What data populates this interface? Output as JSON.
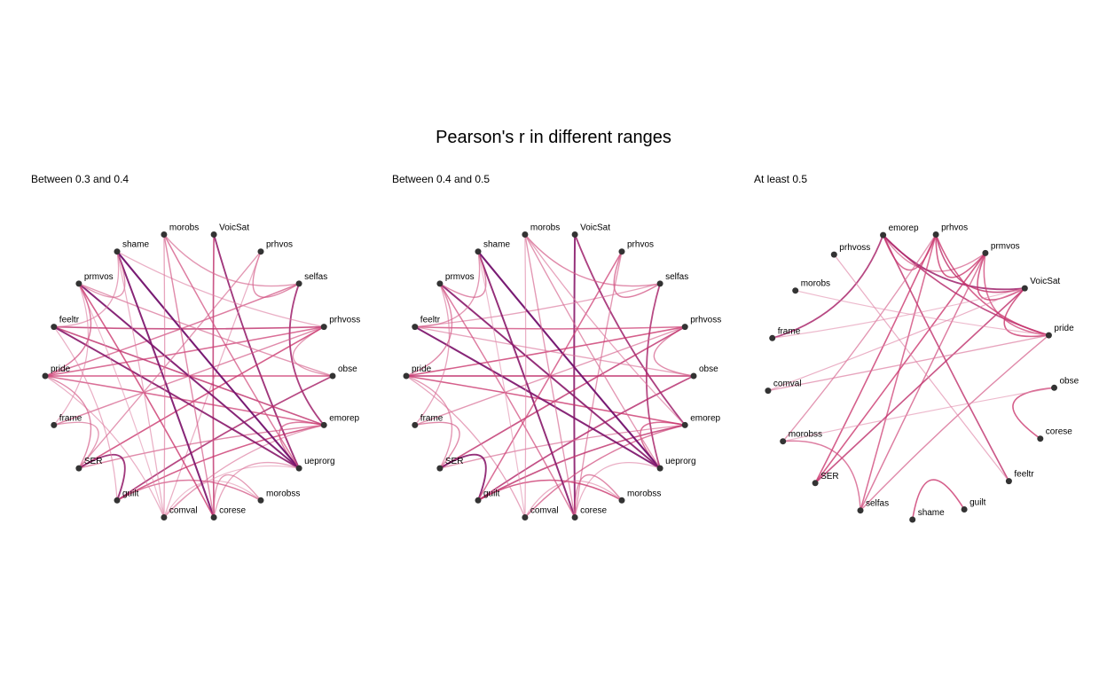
{
  "title": "Pearson's r in different ranges",
  "colors": {
    "node": "#333333",
    "text": "#000000",
    "edge_low": "#ecb8cc",
    "edge_mid": "#c9326a",
    "edge_high": "#5e0a6e"
  },
  "panels": [
    {
      "subtitle": "Between 0.3 and 0.4",
      "nodes": [
        "VoicSat",
        "prhvos",
        "selfas",
        "prhvoss",
        "obse",
        "emorep",
        "ueprorg",
        "morobss",
        "corese",
        "comval",
        "guilt",
        "SER",
        "frame",
        "pride",
        "feeltr",
        "prmvos",
        "shame",
        "morobs"
      ],
      "edges": [
        [
          "VoicSat",
          "corese",
          0.55
        ],
        [
          "VoicSat",
          "ueprorg",
          0.75
        ],
        [
          "prhvos",
          "selfas",
          0.35
        ],
        [
          "prhvos",
          "comval",
          0.2
        ],
        [
          "selfas",
          "emorep",
          0.7
        ],
        [
          "selfas",
          "morobs",
          0.3
        ],
        [
          "selfas",
          "pride",
          0.4
        ],
        [
          "prhvoss",
          "obse",
          0.3
        ],
        [
          "prhvoss",
          "pride",
          0.45
        ],
        [
          "prhvoss",
          "SER",
          0.5
        ],
        [
          "prhvoss",
          "feeltr",
          0.55
        ],
        [
          "prhvoss",
          "frame",
          0.35
        ],
        [
          "prhvoss",
          "shame",
          0.2
        ],
        [
          "obse",
          "pride",
          0.5
        ],
        [
          "obse",
          "guilt",
          0.65
        ],
        [
          "obse",
          "prmvos",
          0.3
        ],
        [
          "emorep",
          "ueprorg",
          0.4
        ],
        [
          "emorep",
          "pride",
          0.45
        ],
        [
          "emorep",
          "feeltr",
          0.55
        ],
        [
          "emorep",
          "guilt",
          0.5
        ],
        [
          "emorep",
          "comval",
          0.25
        ],
        [
          "emorep",
          "SER",
          0.35
        ],
        [
          "ueprorg",
          "feeltr",
          0.8
        ],
        [
          "ueprorg",
          "prmvos",
          0.85
        ],
        [
          "ueprorg",
          "shame",
          0.9
        ],
        [
          "ueprorg",
          "morobs",
          0.4
        ],
        [
          "ueprorg",
          "comval",
          0.15
        ],
        [
          "ueprorg",
          "corese",
          0.25
        ],
        [
          "morobss",
          "corese",
          0.3
        ],
        [
          "morobss",
          "guilt",
          0.4
        ],
        [
          "morobss",
          "comval",
          0.15
        ],
        [
          "corese",
          "shame",
          0.85
        ],
        [
          "corese",
          "morobs",
          0.35
        ],
        [
          "corese",
          "prmvos",
          0.5
        ],
        [
          "comval",
          "pride",
          0.2
        ],
        [
          "comval",
          "morobs",
          0.25
        ],
        [
          "comval",
          "prmvos",
          0.15
        ],
        [
          "guilt",
          "SER",
          0.75
        ],
        [
          "guilt",
          "feeltr",
          0.2
        ],
        [
          "SER",
          "frame",
          0.3
        ],
        [
          "SER",
          "pride",
          0.35
        ],
        [
          "frame",
          "prmvos",
          0.2
        ],
        [
          "pride",
          "prmvos",
          0.4
        ],
        [
          "feeltr",
          "shame",
          0.25
        ],
        [
          "prmvos",
          "shame",
          0.3
        ],
        [
          "prhvos",
          "SER",
          0.3
        ],
        [
          "shame",
          "comval",
          0.2
        ]
      ]
    },
    {
      "subtitle": "Between 0.4 and 0.5",
      "nodes": [
        "VoicSat",
        "prhvos",
        "selfas",
        "prhvoss",
        "obse",
        "emorep",
        "ueprorg",
        "morobss",
        "corese",
        "comval",
        "guilt",
        "SER",
        "frame",
        "pride",
        "feeltr",
        "prmvos",
        "shame",
        "morobs"
      ],
      "edges": [
        [
          "VoicSat",
          "corese",
          0.8
        ],
        [
          "VoicSat",
          "emorep",
          0.7
        ],
        [
          "prhvos",
          "selfas",
          0.4
        ],
        [
          "prhvos",
          "corese",
          0.3
        ],
        [
          "selfas",
          "ueprorg",
          0.65
        ],
        [
          "selfas",
          "morobs",
          0.35
        ],
        [
          "selfas",
          "feeltr",
          0.25
        ],
        [
          "prhvoss",
          "obse",
          0.35
        ],
        [
          "prhvoss",
          "pride",
          0.5
        ],
        [
          "prhvoss",
          "SER",
          0.55
        ],
        [
          "prhvoss",
          "feeltr",
          0.45
        ],
        [
          "prhvoss",
          "frame",
          0.3
        ],
        [
          "obse",
          "pride",
          0.55
        ],
        [
          "obse",
          "guilt",
          0.6
        ],
        [
          "obse",
          "feeltr",
          0.25
        ],
        [
          "emorep",
          "ueprorg",
          0.45
        ],
        [
          "emorep",
          "pride",
          0.5
        ],
        [
          "emorep",
          "comval",
          0.4
        ],
        [
          "emorep",
          "SER",
          0.3
        ],
        [
          "emorep",
          "guilt",
          0.55
        ],
        [
          "ueprorg",
          "feeltr",
          0.85
        ],
        [
          "ueprorg",
          "prmvos",
          0.8
        ],
        [
          "ueprorg",
          "shame",
          0.9
        ],
        [
          "ueprorg",
          "morobs",
          0.3
        ],
        [
          "ueprorg",
          "corese",
          0.2
        ],
        [
          "morobss",
          "corese",
          0.35
        ],
        [
          "morobss",
          "guilt",
          0.5
        ],
        [
          "morobss",
          "comval",
          0.2
        ],
        [
          "corese",
          "shame",
          0.8
        ],
        [
          "corese",
          "morobs",
          0.3
        ],
        [
          "corese",
          "prmvos",
          0.4
        ],
        [
          "comval",
          "pride",
          0.25
        ],
        [
          "comval",
          "morobs",
          0.2
        ],
        [
          "guilt",
          "SER",
          0.8
        ],
        [
          "SER",
          "frame",
          0.35
        ],
        [
          "SER",
          "pride",
          0.3
        ],
        [
          "frame",
          "prmvos",
          0.25
        ],
        [
          "pride",
          "prmvos",
          0.35
        ],
        [
          "feeltr",
          "shame",
          0.3
        ],
        [
          "prmvos",
          "shame",
          0.35
        ],
        [
          "prhvos",
          "guilt",
          0.45
        ],
        [
          "morobs",
          "emorep",
          0.25
        ],
        [
          "shame",
          "comval",
          0.15
        ]
      ]
    },
    {
      "subtitle": "At least 0.5",
      "nodes": [
        "prhvos",
        "prmvos",
        "VoicSat",
        "pride",
        "obse",
        "corese",
        "feeltr",
        "guilt",
        "shame",
        "selfas",
        "SER",
        "morobss",
        "comval",
        "frame",
        "morobs",
        "prhvoss",
        "emorep"
      ],
      "edges": [
        [
          "emorep",
          "prhvos",
          0.45
        ],
        [
          "emorep",
          "prmvos",
          0.35
        ],
        [
          "emorep",
          "VoicSat",
          0.7
        ],
        [
          "emorep",
          "pride",
          0.6
        ],
        [
          "emorep",
          "feeltr",
          0.55
        ],
        [
          "emorep",
          "frame",
          0.65
        ],
        [
          "prhvos",
          "prmvos",
          0.5
        ],
        [
          "prhvos",
          "VoicSat",
          0.55
        ],
        [
          "prhvos",
          "pride",
          0.5
        ],
        [
          "prhvos",
          "SER",
          0.5
        ],
        [
          "prhvos",
          "selfas",
          0.45
        ],
        [
          "prhvos",
          "morobss",
          0.3
        ],
        [
          "prmvos",
          "VoicSat",
          0.5
        ],
        [
          "prmvos",
          "pride",
          0.45
        ],
        [
          "prmvos",
          "selfas",
          0.4
        ],
        [
          "prmvos",
          "SER",
          0.5
        ],
        [
          "VoicSat",
          "pride",
          0.5
        ],
        [
          "VoicSat",
          "SER",
          0.55
        ],
        [
          "VoicSat",
          "comval",
          0.2
        ],
        [
          "VoicSat",
          "frame",
          0.15
        ],
        [
          "pride",
          "comval",
          0.25
        ],
        [
          "pride",
          "selfas",
          0.35
        ],
        [
          "obse",
          "corese",
          0.5
        ],
        [
          "obse",
          "morobss",
          0.15
        ],
        [
          "morobs",
          "pride",
          0.15
        ],
        [
          "prhvoss",
          "feeltr",
          0.2
        ],
        [
          "guilt",
          "shame",
          0.5
        ],
        [
          "morobss",
          "selfas",
          0.4
        ]
      ]
    }
  ]
}
